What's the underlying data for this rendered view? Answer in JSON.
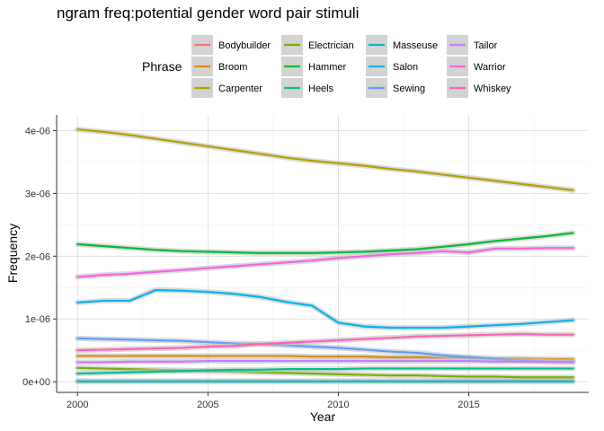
{
  "chart_data": {
    "type": "line",
    "title": "ngram freq:potential gender word pair stimuli",
    "xlabel": "Year",
    "ylabel": "Frequency",
    "legend_title": "Phrase",
    "legend_placement": "top",
    "grid": true,
    "xlim": [
      1999.2,
      2019.6
    ],
    "ylim": [
      -1.7e-07,
      4.25e-06
    ],
    "x_ticks": [
      2000,
      2005,
      2010,
      2015
    ],
    "x_tick_labels": [
      "2000",
      "2005",
      "2010",
      "2015"
    ],
    "y_ticks": [
      0,
      1e-06,
      2e-06,
      3e-06,
      4e-06
    ],
    "y_tick_labels": [
      "0e+00",
      "1e-06",
      "2e-06",
      "3e-06",
      "4e-06"
    ],
    "x": [
      2000,
      2001,
      2002,
      2003,
      2004,
      2005,
      2006,
      2007,
      2008,
      2009,
      2010,
      2011,
      2012,
      2013,
      2014,
      2015,
      2016,
      2017,
      2018,
      2019
    ],
    "series": [
      {
        "name": "Bodybuilder",
        "color": "#F8766D",
        "values": [
          1e-08,
          1e-08,
          1e-08,
          1e-08,
          1e-08,
          1e-08,
          1e-08,
          1e-08,
          1e-08,
          1e-08,
          1e-08,
          1e-08,
          1e-08,
          1e-08,
          1e-08,
          1e-08,
          1e-08,
          1e-08,
          1e-08,
          1e-08
        ]
      },
      {
        "name": "Broom",
        "color": "#DE8C00",
        "values": [
          4.1e-07,
          4.1e-07,
          4.1e-07,
          4.1e-07,
          4.1e-07,
          4.1e-07,
          4.1e-07,
          4.1e-07,
          4.1e-07,
          4e-07,
          4e-07,
          4e-07,
          3.9e-07,
          3.9e-07,
          3.8e-07,
          3.8e-07,
          3.7e-07,
          3.7e-07,
          3.6e-07,
          3.6e-07
        ]
      },
      {
        "name": "Carpenter",
        "color": "#B79F00",
        "values": [
          4.02e-06,
          3.98e-06,
          3.93e-06,
          3.87e-06,
          3.81e-06,
          3.75e-06,
          3.69e-06,
          3.63e-06,
          3.57e-06,
          3.52e-06,
          3.48e-06,
          3.44e-06,
          3.39e-06,
          3.35e-06,
          3.3e-06,
          3.25e-06,
          3.2e-06,
          3.15e-06,
          3.1e-06,
          3.05e-06
        ]
      },
      {
        "name": "Electrician",
        "color": "#7CAE00",
        "values": [
          2.2e-07,
          2.1e-07,
          2e-07,
          1.9e-07,
          1.8e-07,
          1.7e-07,
          1.6e-07,
          1.5e-07,
          1.4e-07,
          1.3e-07,
          1.2e-07,
          1.1e-07,
          1e-07,
          1e-07,
          9e-08,
          8e-08,
          8e-08,
          7e-08,
          7e-08,
          7e-08
        ]
      },
      {
        "name": "Hammer",
        "color": "#00BA38",
        "values": [
          2.19e-06,
          2.16e-06,
          2.13e-06,
          2.1e-06,
          2.08e-06,
          2.07e-06,
          2.06e-06,
          2.05e-06,
          2.05e-06,
          2.05e-06,
          2.06e-06,
          2.07e-06,
          2.09e-06,
          2.11e-06,
          2.15e-06,
          2.19e-06,
          2.24e-06,
          2.28e-06,
          2.32e-06,
          2.37e-06
        ]
      },
      {
        "name": "Heels",
        "color": "#00C08B",
        "values": [
          1.3e-07,
          1.4e-07,
          1.5e-07,
          1.6e-07,
          1.7e-07,
          1.8e-07,
          1.9e-07,
          1.9e-07,
          2e-07,
          2e-07,
          2e-07,
          2.1e-07,
          2.1e-07,
          2.1e-07,
          2.1e-07,
          2.1e-07,
          2.1e-07,
          2.1e-07,
          2.1e-07,
          2.1e-07
        ]
      },
      {
        "name": "Masseuse",
        "color": "#00BFC4",
        "values": [
          5e-09,
          5e-09,
          5e-09,
          5e-09,
          5e-09,
          5e-09,
          5e-09,
          5e-09,
          5e-09,
          5e-09,
          5e-09,
          5e-09,
          5e-09,
          5e-09,
          5e-09,
          5e-09,
          5e-09,
          5e-09,
          5e-09,
          5e-09
        ]
      },
      {
        "name": "Salon",
        "color": "#00B4F0",
        "values": [
          1.26e-06,
          1.29e-06,
          1.29e-06,
          1.46e-06,
          1.45e-06,
          1.43e-06,
          1.4e-06,
          1.35e-06,
          1.27e-06,
          1.21e-06,
          9.4e-07,
          8.8e-07,
          8.6e-07,
          8.6e-07,
          8.6e-07,
          8.8e-07,
          9e-07,
          9.2e-07,
          9.5e-07,
          9.8e-07
        ]
      },
      {
        "name": "Sewing",
        "color": "#619CFF",
        "values": [
          6.9e-07,
          6.8e-07,
          6.7e-07,
          6.6e-07,
          6.5e-07,
          6.3e-07,
          6.1e-07,
          6e-07,
          5.8e-07,
          5.6e-07,
          5.4e-07,
          5.1e-07,
          4.8e-07,
          4.6e-07,
          4.2e-07,
          3.9e-07,
          3.6e-07,
          3.4e-07,
          3.2e-07,
          3.1e-07
        ]
      },
      {
        "name": "Tailor",
        "color": "#C77CFF",
        "values": [
          3.1e-07,
          3.1e-07,
          3.2e-07,
          3.2e-07,
          3.2e-07,
          3.3e-07,
          3.3e-07,
          3.3e-07,
          3.3e-07,
          3.3e-07,
          3.3e-07,
          3.3e-07,
          3.3e-07,
          3.3e-07,
          3.3e-07,
          3.3e-07,
          3.2e-07,
          3.2e-07,
          3.2e-07,
          3.2e-07
        ]
      },
      {
        "name": "Warrior",
        "color": "#F564E3",
        "values": [
          1.67e-06,
          1.7e-06,
          1.72e-06,
          1.75e-06,
          1.78e-06,
          1.81e-06,
          1.84e-06,
          1.87e-06,
          1.9e-06,
          1.93e-06,
          1.97e-06,
          2e-06,
          2.03e-06,
          2.05e-06,
          2.08e-06,
          2.06e-06,
          2.12e-06,
          2.12e-06,
          2.13e-06,
          2.13e-06
        ]
      },
      {
        "name": "Whiskey",
        "color": "#FF64B0",
        "values": [
          5e-07,
          5.1e-07,
          5.2e-07,
          5.3e-07,
          5.4e-07,
          5.6e-07,
          5.7e-07,
          6e-07,
          6.2e-07,
          6.4e-07,
          6.6e-07,
          6.8e-07,
          7e-07,
          7.2e-07,
          7.3e-07,
          7.4e-07,
          7.5e-07,
          7.6e-07,
          7.5e-07,
          7.5e-07
        ]
      }
    ]
  }
}
